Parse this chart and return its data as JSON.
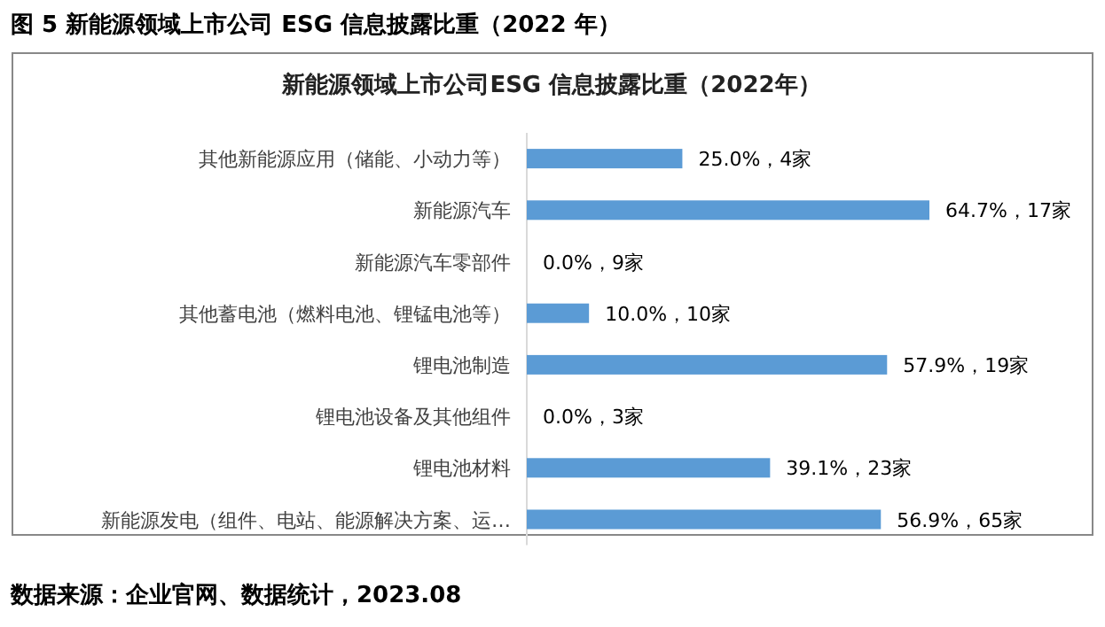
{
  "chart_data": {
    "type": "bar",
    "orientation": "horizontal",
    "title": "图 5 新能源领域上市公司 ESG 信息披露比重（2022 年）",
    "subtitle": "新能源领域上市公司ESG 信息披露比重（2022年）",
    "categories": [
      "其他新能源应用（储能、小动力等）",
      "新能源汽车",
      "新能源汽车零部件",
      "其他蓄电池（燃料电池、锂锰电池等）",
      "锂电池制造",
      "锂电池设备及其他组件",
      "锂电池材料",
      "新能源发电（组件、电站、能源解决方案、运…"
    ],
    "values": [
      25.0,
      64.7,
      0.0,
      10.0,
      57.9,
      0.0,
      39.1,
      56.9
    ],
    "value_labels": [
      "25.0%，4家",
      "64.7%，17家",
      "0.0%，9家",
      "10.0%，10家",
      "57.9%，19家",
      "0.0%，3家",
      "39.1%，23家",
      "56.9%，65家"
    ],
    "color": "#5b9bd5",
    "annotations": [
      "数据来源：企业官网、数据统计，2023.08"
    ]
  }
}
